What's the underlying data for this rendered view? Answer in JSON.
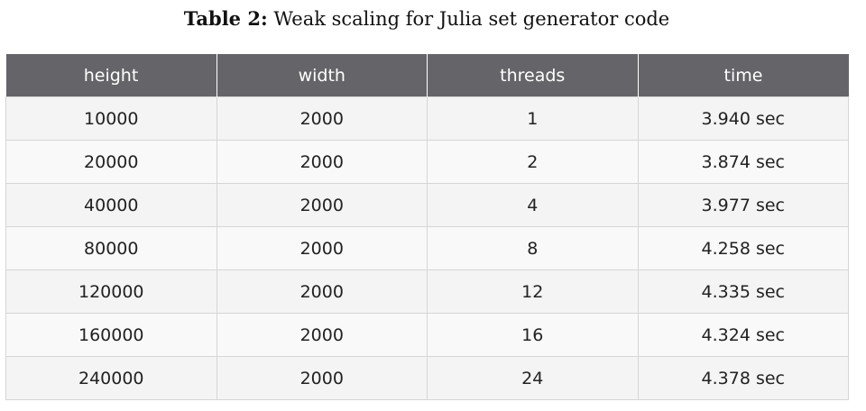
{
  "caption": {
    "label": "Table 2:",
    "text": "Weak scaling for Julia set generator code"
  },
  "table": {
    "columns": [
      "height",
      "width",
      "threads",
      "time"
    ],
    "rows": [
      [
        "10000",
        "2000",
        "1",
        "3.940 sec"
      ],
      [
        "20000",
        "2000",
        "2",
        "3.874 sec"
      ],
      [
        "40000",
        "2000",
        "4",
        "3.977 sec"
      ],
      [
        "80000",
        "2000",
        "8",
        "4.258 sec"
      ],
      [
        "120000",
        "2000",
        "12",
        "4.335 sec"
      ],
      [
        "160000",
        "2000",
        "16",
        "4.324 sec"
      ],
      [
        "240000",
        "2000",
        "24",
        "4.378 sec"
      ]
    ]
  }
}
